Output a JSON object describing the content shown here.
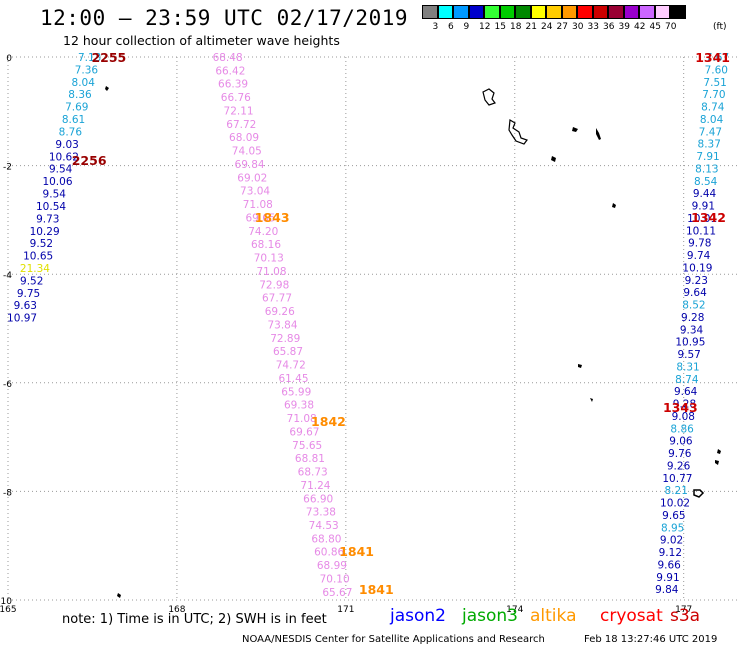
{
  "header": {
    "title": "12:00 — 23:59 UTC 02/17/2019",
    "subtitle": "12 hour collection of altimeter wave heights"
  },
  "legend": {
    "unit": "(ft)",
    "swatches": [
      {
        "color": "#808080",
        "label": "3"
      },
      {
        "color": "#00ffff",
        "label": "6"
      },
      {
        "color": "#0099ff",
        "label": "9"
      },
      {
        "color": "#0000cc",
        "label": "12"
      },
      {
        "color": "#33ff33",
        "label": "15"
      },
      {
        "color": "#00cc00",
        "label": "18"
      },
      {
        "color": "#008800",
        "label": "21"
      },
      {
        "color": "#ffff00",
        "label": "24"
      },
      {
        "color": "#ffcc00",
        "label": "27"
      },
      {
        "color": "#ff9900",
        "label": "30"
      },
      {
        "color": "#ff0000",
        "label": "33"
      },
      {
        "color": "#cc0000",
        "label": "36"
      },
      {
        "color": "#990033",
        "label": "39"
      },
      {
        "color": "#9900cc",
        "label": "42"
      },
      {
        "color": "#cc66ff",
        "label": "45"
      },
      {
        "color": "#ffccff",
        "label": "70"
      },
      {
        "color": "#000000",
        "label": ""
      }
    ]
  },
  "map": {
    "lon_range": [
      165,
      178
    ],
    "lat_range": [
      -10,
      0
    ],
    "lon_ticks": [
      {
        "value": 165,
        "label": "165"
      },
      {
        "value": 168,
        "label": "168"
      },
      {
        "value": 171,
        "label": "171"
      },
      {
        "value": 174,
        "label": "174"
      },
      {
        "value": 177,
        "label": "177"
      }
    ],
    "lat_ticks": [
      {
        "value": 0,
        "label": "0"
      },
      {
        "value": -2,
        "label": "-2"
      },
      {
        "value": -4,
        "label": "-4"
      },
      {
        "value": -6,
        "label": "-6"
      },
      {
        "value": -8,
        "label": "-8"
      },
      {
        "value": -10,
        "label": "-10"
      }
    ],
    "tracks": [
      {
        "name": "cryosat-left",
        "color_map": [
          "#1aa3d6",
          "#1aa3d6",
          "#1aa3d6",
          "#1aa3d6",
          "#1aa3d6",
          "#1aa3d6",
          "#1aa3d6",
          "#0000aa",
          "#0000aa",
          "#0000aa",
          "#0000aa",
          "#0000aa",
          "#0000aa",
          "#0000aa",
          "#0000aa",
          "#0000aa",
          "#0000aa",
          "#e0e000",
          "#0000aa",
          "#0000aa",
          "#0000aa",
          "#0000aa"
        ],
        "lon_start": 166.45,
        "lon_end": 165.25,
        "lat_start": 0,
        "lat_end": -4.8,
        "values": [
          "7.13",
          "7.36",
          "8.04",
          "8.36",
          "7.69",
          "8.61",
          "8.76",
          "9.03",
          "10.62",
          "9.54",
          "10.06",
          "9.54",
          "10.54",
          "9.73",
          "10.29",
          "9.52",
          "10.65",
          "21.34",
          "9.52",
          "9.75",
          "9.63",
          "10.97"
        ]
      },
      {
        "name": "altika-mid",
        "color": "#e68ae6",
        "lon_start": 168.9,
        "lon_end": 170.85,
        "lat_start": 0,
        "lat_end": -9.85,
        "values": [
          "68.48",
          "66.42",
          "66.39",
          "66.76",
          "72.11",
          "67.72",
          "68.09",
          "74.05",
          "69.84",
          "69.02",
          "73.04",
          "71.08",
          "69.65",
          "74.20",
          "68.16",
          "70.13",
          "71.08",
          "72.98",
          "67.77",
          "69.26",
          "73.84",
          "72.89",
          "65.87",
          "74.72",
          "61.45",
          "65.99",
          "69.38",
          "71.08",
          "69.67",
          "75.65",
          "68.81",
          "68.73",
          "71.24",
          "66.90",
          "73.38",
          "74.53",
          "68.80",
          "60.86",
          "68.99",
          "70.10",
          "65.67"
        ]
      },
      {
        "name": "jason2-right",
        "color_map": [
          "#1aa3d6",
          "#1aa3d6",
          "#1aa3d6",
          "#1aa3d6",
          "#1aa3d6",
          "#1aa3d6",
          "#1aa3d6",
          "#1aa3d6",
          "#1aa3d6",
          "#1aa3d6",
          "#1aa3d6",
          "#0000aa",
          "#0000aa",
          "#0000aa",
          "#0000aa",
          "#0000aa",
          "#0000aa",
          "#0000aa",
          "#0000aa",
          "#0000aa",
          "#1aa3d6",
          "#0000aa",
          "#0000aa",
          "#0000aa",
          "#0000aa",
          "#1aa3d6",
          "#1aa3d6",
          "#0000aa",
          "#0000aa",
          "#0000aa",
          "#1aa3d6",
          "#0000aa",
          "#0000aa",
          "#0000aa",
          "#0000aa",
          "#1aa3d6",
          "#0000aa",
          "#0000aa",
          "#1aa3d6",
          "#0000aa",
          "#0000aa",
          "#0000aa",
          "#0000aa",
          "#0000aa"
        ],
        "lon_start": 177.6,
        "lon_end": 176.7,
        "lat_start": 0,
        "lat_end": -9.8,
        "values": [
          "7.67",
          "7.60",
          "7.51",
          "7.70",
          "8.74",
          "8.04",
          "7.47",
          "8.37",
          "7.91",
          "8.13",
          "8.54",
          "9.44",
          "9.91",
          "10.01",
          "10.11",
          "9.78",
          "9.74",
          "10.19",
          "9.23",
          "9.64",
          "8.52",
          "9.28",
          "9.34",
          "10.95",
          "9.57",
          "8.31",
          "8.74",
          "9.64",
          "9.28",
          "9.08",
          "8.86",
          "9.06",
          "9.76",
          "9.26",
          "10.77",
          "8.21",
          "10.02",
          "9.65",
          "8.95",
          "9.02",
          "9.12",
          "9.66",
          "9.91",
          "9.84"
        ]
      }
    ],
    "time_labels": [
      {
        "text": "2255",
        "color": "#990000",
        "lon": 167.1,
        "lat": 0
      },
      {
        "text": "2256",
        "color": "#990000",
        "lon": 166.75,
        "lat": -1.9
      },
      {
        "text": "1843",
        "color": "#ff8c00",
        "lon": 170.0,
        "lat": -2.95
      },
      {
        "text": "1842",
        "color": "#ff8c00",
        "lon": 171.0,
        "lat": -6.7
      },
      {
        "text": "1841",
        "color": "#ff8c00",
        "lon": 171.5,
        "lat": -9.1
      },
      {
        "text": "1841",
        "color": "#ff8c00",
        "lon": 171.85,
        "lat": -9.8
      },
      {
        "text": "1341",
        "color": "#cc0000",
        "lon": 178.0,
        "lat": 0
      },
      {
        "text": "1342",
        "color": "#cc0000",
        "lon": 177.75,
        "lat": -2.95
      },
      {
        "text": "1343",
        "color": "#cc0000",
        "lon": 177.25,
        "lat": -6.45
      }
    ]
  },
  "footer": {
    "note": "note:  1) Time is in UTC;  2) SWH is in feet",
    "satellites": [
      {
        "name": "jason2",
        "color": "#0000ff"
      },
      {
        "name": "jason3",
        "color": "#00aa00"
      },
      {
        "name": "altika",
        "color": "#ff9900"
      },
      {
        "name": "cryosat",
        "color": "#ff0000"
      },
      {
        "name": "s3a",
        "color": "#cc0000"
      }
    ],
    "credit": "NOAA/NESDIS Center for Satellite Applications and Research",
    "timestamp": "Feb 18 13:27:46 UTC 2019"
  }
}
